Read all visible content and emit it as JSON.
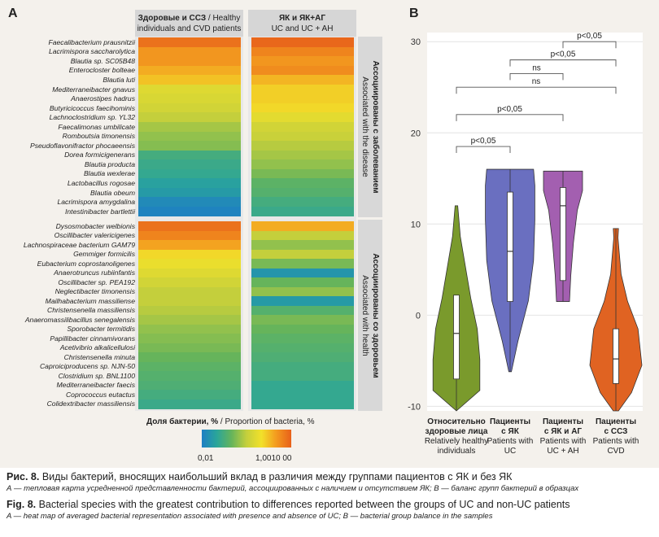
{
  "panelA": {
    "label": "A",
    "col1_title_ru": "Здоровые и ССЗ",
    "col1_title_en": "/ Healthy individuals and CVD patients",
    "col2_title_ru": "ЯК и ЯК+АГ",
    "col2_title_en": "UC and UC + AH",
    "group1_label_ru": "Ассоциированы с заболеванием",
    "group1_label_en": "Associated with the disease",
    "group2_label_ru": "Ассоциированы со здоровьем",
    "group2_label_en": "Associated with health",
    "disease_bacteria": [
      "Faecalibacterium prausnitzii",
      "Lacrimispora saccharolytica",
      "Blautia sp. SC05B48",
      "Enterocloster bolteae",
      "Blautia luti",
      "Mediterraneibacter gnavus",
      "Anaerostipes hadrus",
      "Butyricicoccus faecihominis",
      "Lachnoclostridium sp. YL32",
      "Faecalimonas umbilicate",
      "Romboutsia timonensis",
      "Pseudoflavonifractor phocaeensis",
      "Dorea formicigenerans",
      "Blautia producta",
      "Blautia wexlerae",
      "Lactobacillus rogosae",
      "Blautia obeum",
      "Lacrimispora amygdalina",
      "Intestinibacter bartlettii"
    ],
    "health_bacteria": [
      "Dysosmobacter welbionis",
      "Oscillibacter valericigenes",
      "Lachnospiraceae bacterium GAM79",
      "Gemmiger formicilis",
      "Eubacterium coprostanoligenes",
      "Anaerotruncus rubiinfantis",
      "Oscillibacter sp. PEA192",
      "Neglectibacter timonensis",
      "Mailhabacterium massiliense",
      "Christensenella massiliensis",
      "Anaeromassilibacillus senegalensis",
      "Sporobacter termitidis",
      "Papillibacter cinnamivorans",
      "Acetivibrio alkalicellulosi",
      "Christensenella minuta",
      "Caproiciproducens sp. NJN-50",
      "Clostridium sp. BNL1100",
      "Mediterraneibacter faecis",
      "Coprococcus eutactus",
      "Colidextribacter massiliensis"
    ],
    "heat_col1_disease": [
      0.95,
      0.85,
      0.85,
      0.8,
      0.75,
      0.6,
      0.58,
      0.55,
      0.5,
      0.45,
      0.42,
      0.4,
      0.25,
      0.22,
      0.2,
      0.15,
      0.12,
      0.05,
      0.02
    ],
    "heat_col2_disease": [
      0.98,
      0.9,
      0.85,
      0.88,
      0.78,
      0.72,
      0.72,
      0.7,
      0.62,
      0.55,
      0.52,
      0.48,
      0.45,
      0.42,
      0.38,
      0.32,
      0.3,
      0.25,
      0.22
    ],
    "heat_col1_health": [
      0.95,
      0.9,
      0.82,
      0.7,
      0.65,
      0.6,
      0.55,
      0.5,
      0.5,
      0.48,
      0.45,
      0.42,
      0.4,
      0.38,
      0.35,
      0.32,
      0.3,
      0.28,
      0.25,
      0.22
    ],
    "heat_col2_health": [
      0.8,
      0.5,
      0.42,
      0.5,
      0.38,
      0.1,
      0.35,
      0.42,
      0.12,
      0.3,
      0.38,
      0.35,
      0.32,
      0.3,
      0.28,
      0.25,
      0.25,
      0.2,
      0.2,
      0.2
    ],
    "legend_title_bold": "Доля бактерии, %",
    "legend_title_rest": "/ Proportion of bacteria, %",
    "legend_min": "0,01",
    "legend_max": "1,0010 00"
  },
  "panelB": {
    "label": "B",
    "chart_data": {
      "type": "violin",
      "ylim": [
        -10.5,
        31
      ],
      "yticks": [
        30,
        20,
        10,
        0,
        -10
      ],
      "groups": [
        {
          "name_ru": "Относительно здоровые лица",
          "name_en": "Relatively healthy individuals",
          "color": "#7a9a2c",
          "min": -10.5,
          "q1": -7,
          "median": -2,
          "q3": 2.2,
          "max": 12,
          "top_whisker": 2.2
        },
        {
          "name_ru": "Пациенты с ЯК",
          "name_en": "Patients with UC",
          "color": "#6a6fc0",
          "min": -6.2,
          "q1": 1.5,
          "median": 7,
          "q3": 13.5,
          "max": 16,
          "top_whisker": 16
        },
        {
          "name_ru": "Пациенты с ЯК и АГ",
          "name_en": "Patients with UC + AH",
          "color": "#a35fb0",
          "min": 1.5,
          "q1": 3.8,
          "median": 12,
          "q3": 14,
          "max": 15.8,
          "top_whisker": 15.8
        },
        {
          "name_ru": "Пациенты с ССЗ",
          "name_en": "Patients with CVD",
          "color": "#e06322",
          "min": -10.5,
          "q1": -7.5,
          "median": -4.8,
          "q3": -1.5,
          "max": 9.5,
          "top_whisker": 9.5
        }
      ],
      "comparisons": [
        {
          "from": 0,
          "to": 1,
          "label": "p<0,05",
          "y": 18.5
        },
        {
          "from": 0,
          "to": 2,
          "label": "p<0,05",
          "y": 22
        },
        {
          "from": 0,
          "to": 3,
          "label": "ns",
          "y": 25
        },
        {
          "from": 1,
          "to": 2,
          "label": "ns",
          "y": 26.5
        },
        {
          "from": 1,
          "to": 3,
          "label": "p<0,05",
          "y": 28
        },
        {
          "from": 2,
          "to": 3,
          "label": "p<0,05",
          "y": 30
        }
      ]
    }
  },
  "caption": {
    "ru_title": "Рис. 8.",
    "ru_text": " Виды бактерий, вносящих наибольший вклад в различия между группами пациентов с ЯК и без ЯК",
    "ru_sub": "А — тепловая карта усредненной представленности бактерий, ассоциированных с наличием и отсутствием ЯК; В — баланс групп бактерий в образцах",
    "en_title": "Fig. 8.",
    "en_text": " Bacterial species with the greatest contribution to differences reported between the groups of UC and non-UC patients",
    "en_sub": "A — heat map of averaged bacterial representation associated with presence and absence of UC; B — bacterial group balance in the samples"
  }
}
